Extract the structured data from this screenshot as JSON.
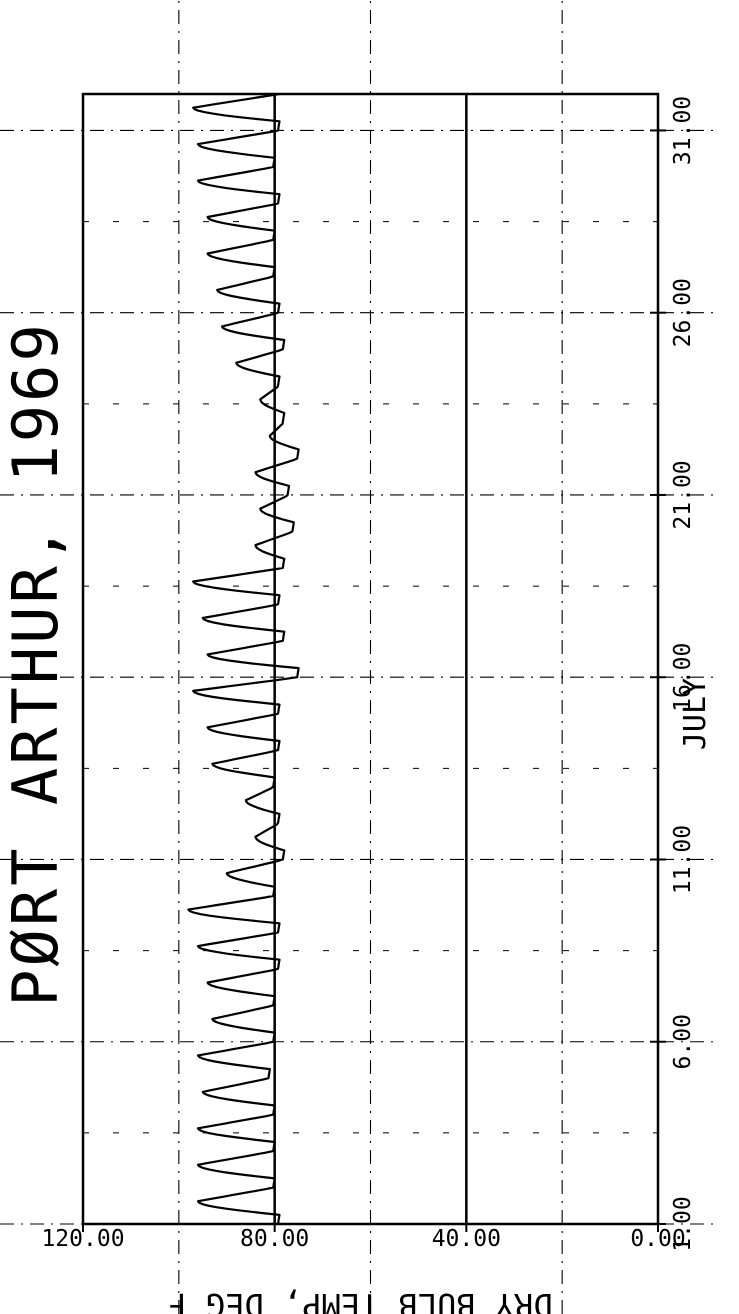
{
  "chart_data": {
    "type": "line",
    "title": "PØRT ARTHUR, 1969",
    "xlabel": "JULY",
    "ylabel": "DRY BULB TEMP, DEG F",
    "xlim": [
      1,
      32
    ],
    "ylim": [
      0,
      120
    ],
    "x_ticks": [
      1,
      6,
      11,
      16,
      21,
      26,
      31
    ],
    "x_tick_labels": [
      "1.00",
      "6.00",
      "11.00",
      "16.00",
      "21.00",
      "26.00",
      "31.00"
    ],
    "y_ticks": [
      0,
      40,
      80,
      120
    ],
    "y_tick_labels": [
      "0.00",
      "40.00",
      "80.00",
      "120.00"
    ],
    "grid": true,
    "series": [
      {
        "daily_min": [
          79,
          80,
          80,
          80,
          81,
          80,
          80,
          79,
          79,
          80,
          78,
          79,
          80,
          79,
          79,
          75,
          78,
          79,
          78,
          76,
          77,
          75,
          78,
          79,
          78,
          79,
          80,
          80,
          79,
          80,
          79
        ],
        "daily_max": [
          96,
          96,
          96,
          95,
          96,
          93,
          94,
          96,
          98,
          90,
          84,
          86,
          93,
          94,
          97,
          94,
          95,
          97,
          84,
          83,
          84,
          81,
          83,
          88,
          91,
          92,
          94,
          94,
          96,
          96,
          97
        ],
        "hourly": []
      }
    ]
  }
}
